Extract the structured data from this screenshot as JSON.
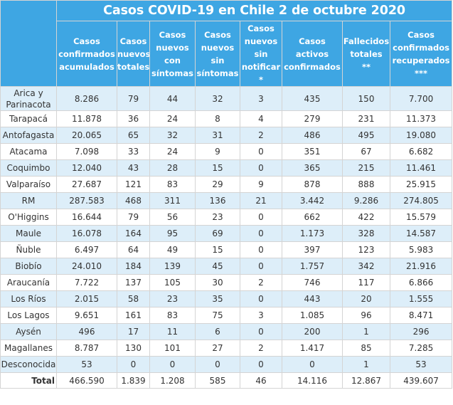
{
  "title": "Casos COVID-19 en Chile 2 de octubre 2020",
  "columns": [
    [
      "Casos",
      "confirmados",
      "acumulados"
    ],
    [
      "Casos",
      "nuevos",
      "totales"
    ],
    [
      "Casos",
      "nuevos",
      "con",
      "síntomas"
    ],
    [
      "Casos",
      "nuevos",
      "sin",
      "síntomas"
    ],
    [
      "Casos",
      "nuevos",
      "sin",
      "notificar",
      "*"
    ],
    [
      "Casos",
      "activos",
      "confirmados"
    ],
    [
      "Fallecidos",
      "totales",
      "**"
    ],
    [
      "Casos",
      "confirmados",
      "recuperados",
      "***"
    ]
  ],
  "rows": [
    [
      "Arica y Parinacota",
      "8.286",
      "79",
      "44",
      "32",
      "3",
      "435",
      "150",
      "7.700"
    ],
    [
      "Tarapacá",
      "11.878",
      "36",
      "24",
      "8",
      "4",
      "279",
      "231",
      "11.373"
    ],
    [
      "Antofagasta",
      "20.065",
      "65",
      "32",
      "31",
      "2",
      "486",
      "495",
      "19.080"
    ],
    [
      "Atacama",
      "7.098",
      "33",
      "24",
      "9",
      "0",
      "351",
      "67",
      "6.682"
    ],
    [
      "Coquimbo",
      "12.040",
      "43",
      "28",
      "15",
      "0",
      "365",
      "215",
      "11.461"
    ],
    [
      "Valparaíso",
      "27.687",
      "121",
      "83",
      "29",
      "9",
      "878",
      "888",
      "25.915"
    ],
    [
      "RM",
      "287.583",
      "468",
      "311",
      "136",
      "21",
      "3.442",
      "9.286",
      "274.805"
    ],
    [
      "O'Higgins",
      "16.644",
      "79",
      "56",
      "23",
      "0",
      "662",
      "422",
      "15.579"
    ],
    [
      "Maule",
      "16.078",
      "164",
      "95",
      "69",
      "0",
      "1.173",
      "328",
      "14.587"
    ],
    [
      "Ñuble",
      "6.497",
      "64",
      "49",
      "15",
      "0",
      "397",
      "123",
      "5.983"
    ],
    [
      "Biobío",
      "24.010",
      "184",
      "139",
      "45",
      "0",
      "1.757",
      "342",
      "21.916"
    ],
    [
      "Araucanía",
      "7.722",
      "137",
      "105",
      "30",
      "2",
      "746",
      "117",
      "6.866"
    ],
    [
      "Los Ríos",
      "2.015",
      "58",
      "23",
      "35",
      "0",
      "443",
      "20",
      "1.555"
    ],
    [
      "Los Lagos",
      "9.651",
      "161",
      "83",
      "75",
      "3",
      "1.085",
      "96",
      "8.471"
    ],
    [
      "Aysén",
      "496",
      "17",
      "11",
      "6",
      "0",
      "200",
      "1",
      "296"
    ],
    [
      "Magallanes",
      "8.787",
      "130",
      "101",
      "27",
      "2",
      "1.417",
      "85",
      "7.285"
    ],
    [
      "Desconocida",
      "53",
      "0",
      "0",
      "0",
      "0",
      "0",
      "1",
      "53"
    ]
  ],
  "total": [
    "Total",
    "466.590",
    "1.839",
    "1.208",
    "585",
    "46",
    "14.116",
    "12.867",
    "439.607"
  ],
  "colors": {
    "header_bg": "#3ea6e3",
    "header_text": "#ffffff",
    "row_alt_bg": "#ddeef9",
    "grid": "#d4d4d4"
  }
}
